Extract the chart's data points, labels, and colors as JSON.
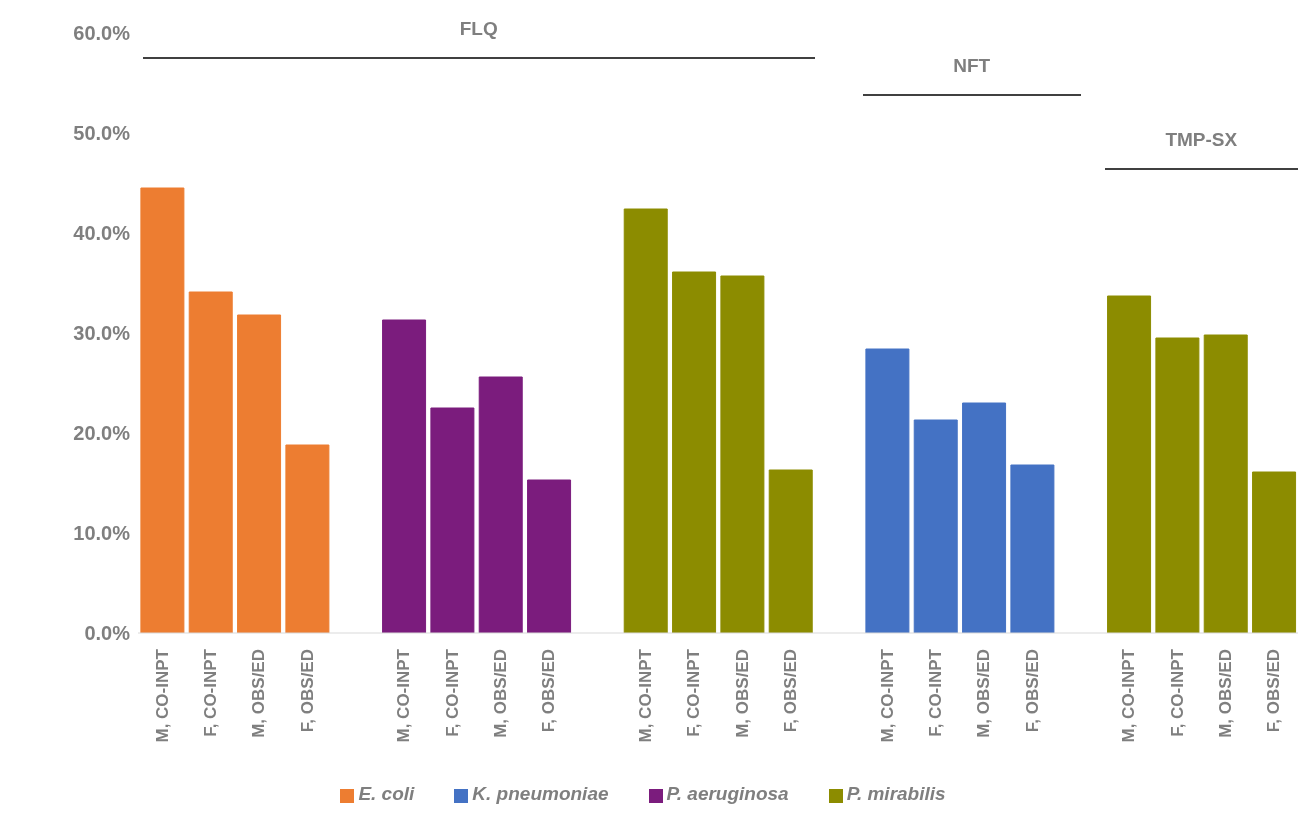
{
  "chart_data": {
    "type": "bar",
    "categories": [
      "M, CO-INPT",
      "F, CO-INPT",
      "M, OBS/ED",
      "F, OBS/ED",
      null,
      "M, CO-INPT",
      "F, CO-INPT",
      "M, OBS/ED",
      "F, OBS/ED",
      null,
      "M, CO-INPT",
      "F, CO-INPT",
      "M, OBS/ED",
      "F, OBS/ED",
      null,
      "M, CO-INPT",
      "F, CO-INPT",
      "M, OBS/ED",
      "F, OBS/ED",
      null,
      "M, CO-INPT",
      "F, CO-INPT",
      "M, OBS/ED",
      "F, OBS/ED"
    ],
    "series": [
      {
        "name": "E. coli",
        "color": "#ed7d31",
        "values": [
          44.5,
          34.1,
          31.8,
          18.8,
          null,
          null,
          null,
          null,
          null,
          null,
          null,
          null,
          null,
          null,
          null,
          null,
          null,
          null,
          null,
          null,
          null,
          null,
          null,
          null
        ]
      },
      {
        "name": "K. pneumoniae",
        "color": "#4472c4",
        "values": [
          null,
          null,
          null,
          null,
          null,
          null,
          null,
          null,
          null,
          null,
          null,
          null,
          null,
          null,
          null,
          28.4,
          21.3,
          23.0,
          16.8,
          null,
          null,
          null,
          null,
          null
        ]
      },
      {
        "name": "P. aeruginosa",
        "color": "#7b1c7d",
        "values": [
          null,
          null,
          null,
          null,
          null,
          31.3,
          22.5,
          25.6,
          15.3,
          null,
          null,
          null,
          null,
          null,
          null,
          null,
          null,
          null,
          null,
          null,
          null,
          null,
          null,
          null
        ]
      },
      {
        "name": "P. mirabilis",
        "color": "#8c8c00",
        "values": [
          null,
          null,
          null,
          null,
          null,
          null,
          null,
          null,
          null,
          null,
          42.4,
          36.1,
          35.7,
          16.3,
          null,
          null,
          null,
          null,
          null,
          null,
          33.7,
          29.5,
          29.8,
          16.1
        ]
      }
    ],
    "annotations": [
      "FLQ",
      "NFT",
      "TMP-SX"
    ],
    "ylim": [
      0,
      60
    ],
    "yticks": [
      {
        "value": 0,
        "label": "0.0%"
      },
      {
        "value": 10,
        "label": "10.0%"
      },
      {
        "value": 20,
        "label": "20.0%"
      },
      {
        "value": 30,
        "label": "30.0%"
      },
      {
        "value": 40,
        "label": "40.0%"
      },
      {
        "value": 50,
        "label": "50.0%"
      },
      {
        "value": 60,
        "label": "60.0%"
      }
    ],
    "grid": false,
    "legend": "bottom"
  }
}
